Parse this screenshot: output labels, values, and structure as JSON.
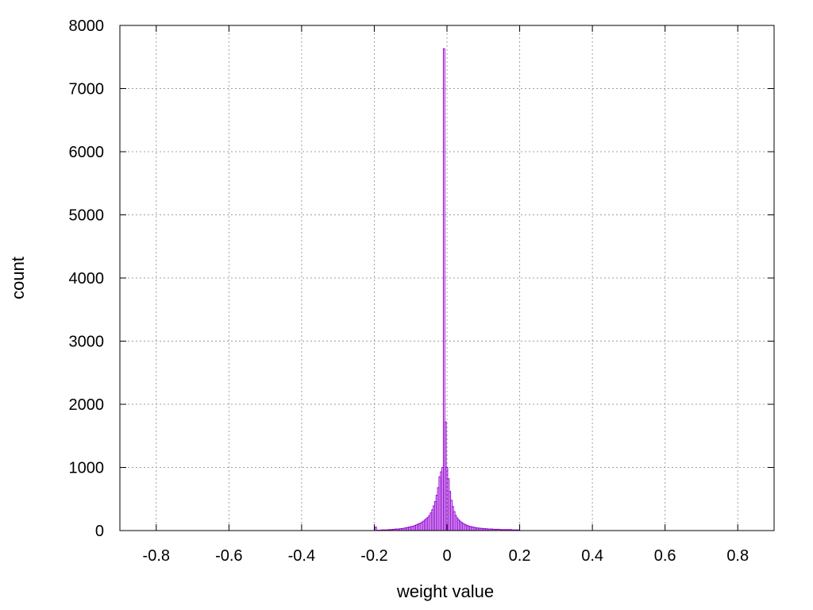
{
  "chart_data": {
    "type": "bar",
    "title": "",
    "xlabel": "weight value",
    "ylabel": "count",
    "xlim": [
      -0.9,
      0.9
    ],
    "ylim": [
      0,
      8000
    ],
    "xticks": [
      "-0.8",
      "-0.6",
      "-0.4",
      "-0.2",
      "0",
      "0.2",
      "0.4",
      "0.6",
      "0.8"
    ],
    "yticks": [
      "0",
      "1000",
      "2000",
      "3000",
      "4000",
      "5000",
      "6000",
      "7000",
      "8000"
    ],
    "grid": true,
    "legend": "none",
    "bar_color": "#9400d3",
    "bin_width": 0.004,
    "x": [
      -0.196,
      -0.192,
      -0.188,
      -0.184,
      -0.18,
      -0.176,
      -0.172,
      -0.168,
      -0.164,
      -0.16,
      -0.156,
      -0.152,
      -0.148,
      -0.144,
      -0.14,
      -0.136,
      -0.132,
      -0.128,
      -0.124,
      -0.12,
      -0.116,
      -0.112,
      -0.108,
      -0.104,
      -0.1,
      -0.096,
      -0.092,
      -0.088,
      -0.084,
      -0.08,
      -0.076,
      -0.072,
      -0.068,
      -0.064,
      -0.06,
      -0.056,
      -0.052,
      -0.048,
      -0.044,
      -0.04,
      -0.036,
      -0.032,
      -0.028,
      -0.024,
      -0.02,
      -0.016,
      -0.012,
      -0.008,
      -0.004,
      0,
      0.004,
      0.008,
      0.012,
      0.016,
      0.02,
      0.024,
      0.028,
      0.032,
      0.036,
      0.04,
      0.044,
      0.048,
      0.052,
      0.056,
      0.06,
      0.064,
      0.068,
      0.072,
      0.076,
      0.08,
      0.084,
      0.088,
      0.092,
      0.096,
      0.1,
      0.104,
      0.108,
      0.112,
      0.116,
      0.12,
      0.124,
      0.128,
      0.132,
      0.136,
      0.14,
      0.144,
      0.148,
      0.152,
      0.156,
      0.16,
      0.164,
      0.168,
      0.172,
      0.176,
      0.18,
      0.184,
      0.188,
      0.192,
      0.196
    ],
    "values": [
      55,
      5,
      5,
      5,
      10,
      10,
      10,
      10,
      10,
      15,
      15,
      15,
      20,
      20,
      25,
      25,
      25,
      30,
      30,
      35,
      40,
      45,
      50,
      55,
      60,
      65,
      70,
      80,
      90,
      100,
      110,
      120,
      135,
      150,
      170,
      190,
      210,
      240,
      280,
      330,
      390,
      460,
      560,
      680,
      850,
      930,
      1000,
      7630,
      1720,
      1000,
      820,
      620,
      480,
      380,
      300,
      240,
      200,
      170,
      150,
      130,
      115,
      100,
      90,
      80,
      70,
      65,
      60,
      55,
      50,
      45,
      40,
      40,
      35,
      35,
      30,
      30,
      30,
      25,
      25,
      25,
      25,
      20,
      20,
      20,
      20,
      20,
      15,
      15,
      15,
      15,
      15,
      15,
      15,
      15,
      10,
      10,
      10,
      10,
      10
    ]
  }
}
